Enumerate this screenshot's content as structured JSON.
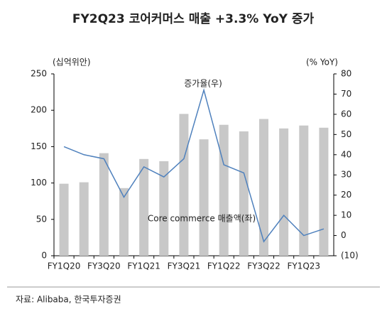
{
  "chart_data": {
    "type": "bar-line",
    "title": "FY2Q23 코어커머스 매출 +3.3% YoY 증가",
    "y_unit": "(십억위안)",
    "y2_unit": "(% YoY)",
    "source": "자료: Alibaba, 한국투자증권",
    "categories": [
      "FY1Q20",
      null,
      "FY3Q20",
      null,
      "FY1Q21",
      null,
      "FY3Q21",
      null,
      "FY1Q22",
      null,
      "FY3Q22",
      null,
      "FY1Q23",
      null
    ],
    "series": [
      {
        "name": "Core commerce  매출액(좌)",
        "type": "bar",
        "color": "#c8c8c8",
        "values": [
          99,
          101,
          141,
          93,
          133,
          130,
          195,
          160,
          180,
          171,
          188,
          175,
          179,
          176
        ]
      },
      {
        "name": "증가율(우)",
        "type": "line",
        "axis": "y2",
        "color": "#4f81bd",
        "values": [
          44,
          40,
          38,
          19,
          34,
          29,
          38,
          72,
          35,
          31,
          -3,
          10,
          0,
          3.3
        ]
      }
    ],
    "ylim": [
      0,
      250
    ],
    "yticks": [
      0,
      50,
      100,
      150,
      200,
      250
    ],
    "y2lim": [
      -10,
      80
    ],
    "y2ticks": [
      {
        "value": -10,
        "label": "(10)"
      },
      0,
      10,
      20,
      30,
      40,
      50,
      60,
      70,
      80
    ]
  }
}
